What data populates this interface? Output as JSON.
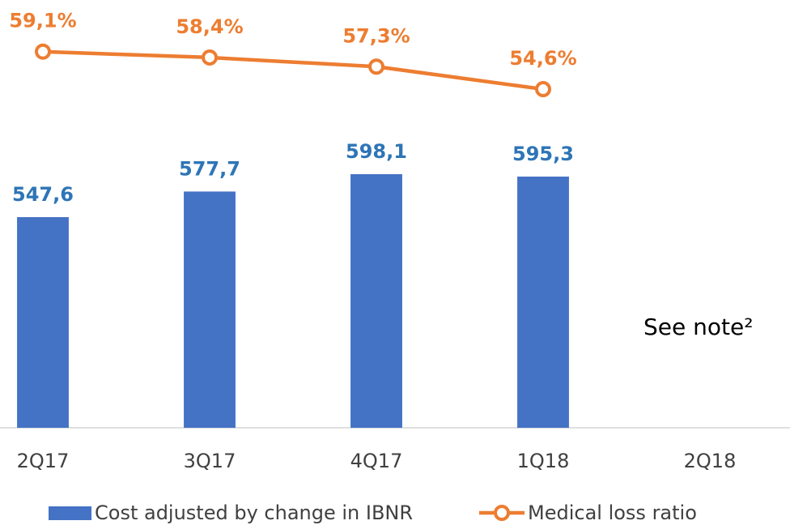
{
  "chart_data": {
    "type": "bar",
    "categories": [
      "2Q17",
      "3Q17",
      "4Q17",
      "1Q18",
      "2Q18"
    ],
    "series": [
      {
        "name": "Cost adjusted by change in IBNR",
        "type": "bar",
        "color": "#4472c4",
        "label_color": "#2e75b6",
        "values": [
          547.6,
          577.7,
          598.1,
          595.3,
          null
        ],
        "value_labels": [
          "547,6",
          "577,7",
          "598,1",
          "595,3",
          null
        ]
      },
      {
        "name": "Medical loss ratio",
        "type": "line",
        "axis": "y2",
        "color": "#ed7d31",
        "values": [
          59.1,
          58.4,
          57.3,
          54.6,
          null
        ],
        "value_labels": [
          "59,1%",
          "58,4%",
          "57,3%",
          "54,6%",
          null
        ]
      }
    ],
    "ylim": [
      300,
      800
    ],
    "y2lim": [
      14,
      65
    ],
    "annotation": "See note²"
  }
}
